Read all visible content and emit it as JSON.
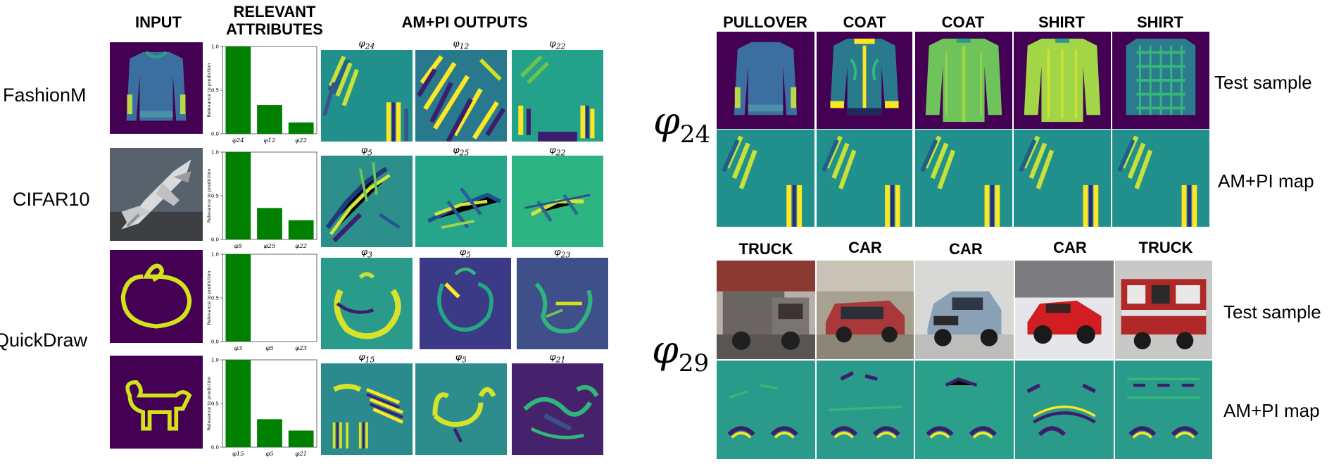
{
  "left_panel": {
    "headers": {
      "input": "INPUT",
      "relevant_line1": "RELEVANT",
      "relevant_line2": "ATTRIBUTES",
      "outputs": "AM+PI OUTPUTS"
    },
    "rows": [
      {
        "dataset": "FashionM",
        "input_desc": "pullover",
        "output_labels": [
          "24",
          "12",
          "22"
        ]
      },
      {
        "dataset": "CIFAR10",
        "input_desc": "airplane",
        "output_labels": [
          "5",
          "25",
          "22"
        ]
      },
      {
        "dataset": "QuickDraw",
        "input_desc": "doodle",
        "output_labels": [
          "3",
          "5",
          "23"
        ]
      },
      {
        "dataset": "",
        "input_desc": "dog doodle",
        "output_labels": [
          "15",
          "5",
          "21"
        ]
      }
    ]
  },
  "chart_data": [
    {
      "type": "bar",
      "categories": [
        "φ24",
        "φ12",
        "φ22"
      ],
      "values": [
        1.0,
        0.33,
        0.13
      ],
      "ylabel": "Relevance to prediction",
      "ylim": [
        0,
        1.0
      ],
      "yticks": [
        "0.0",
        "0.5",
        "1.0"
      ],
      "color": "#008000"
    },
    {
      "type": "bar",
      "categories": [
        "φ5",
        "φ25",
        "φ22"
      ],
      "values": [
        1.0,
        0.36,
        0.22
      ],
      "ylabel": "Relevance to prediction",
      "ylim": [
        0,
        1.0
      ],
      "yticks": [
        "0.0",
        "0.5",
        "1.0"
      ],
      "color": "#008000"
    },
    {
      "type": "bar",
      "categories": [
        "φ3",
        "φ5",
        "φ23"
      ],
      "values": [
        1.0,
        0.0,
        0.0
      ],
      "ylabel": "Relevance to prediction",
      "ylim": [
        0,
        1.0
      ],
      "yticks": [
        "0.0",
        "0.5",
        "1.0"
      ],
      "color": "#008000"
    },
    {
      "type": "bar",
      "categories": [
        "φ15",
        "φ5",
        "φ21"
      ],
      "values": [
        1.0,
        0.32,
        0.19
      ],
      "ylabel": "Relevance to prediction",
      "ylim": [
        0,
        1.0
      ],
      "yticks": [
        "0.0",
        "0.5",
        "1.0"
      ],
      "color": "#008000"
    }
  ],
  "right_panel": {
    "blocks": [
      {
        "phi_symbol": "φ",
        "phi_index": "24",
        "classes": [
          "PULLOVER",
          "COAT",
          "COAT",
          "SHIRT",
          "SHIRT"
        ],
        "test_label": "Test sample",
        "map_label": "AM+PI map"
      },
      {
        "phi_symbol": "φ",
        "phi_index": "29",
        "classes": [
          "TRUCK",
          "CAR",
          "CAR",
          "CAR",
          "TRUCK"
        ],
        "test_label": "Test sample",
        "map_label": "AM+PI map"
      }
    ]
  },
  "colors": {
    "viridis_dark": "#440154",
    "viridis_teal": "#21908c",
    "viridis_green": "#35b779",
    "viridis_yellow": "#fde725",
    "bar_green": "#008000"
  }
}
